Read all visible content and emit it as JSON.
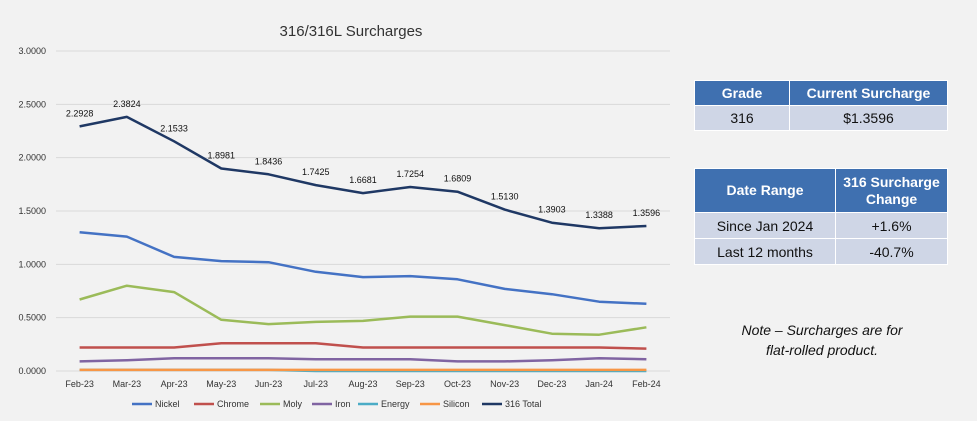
{
  "chart_data": {
    "type": "line",
    "title": "316/316L Surcharges",
    "categories": [
      "Feb-23",
      "Mar-23",
      "Apr-23",
      "May-23",
      "Jun-23",
      "Jul-23",
      "Aug-23",
      "Sep-23",
      "Oct-23",
      "Nov-23",
      "Dec-23",
      "Jan-24",
      "Feb-24"
    ],
    "ylim": [
      0,
      3.0
    ],
    "yticks": [
      "0.0000",
      "0.5000",
      "1.0000",
      "1.5000",
      "2.0000",
      "2.5000",
      "3.0000"
    ],
    "grid": true,
    "legend": "bottom",
    "series": [
      {
        "name": "Nickel",
        "color": "#4472c4",
        "values": [
          1.3,
          1.26,
          1.07,
          1.03,
          1.02,
          0.93,
          0.88,
          0.89,
          0.86,
          0.77,
          0.72,
          0.65,
          0.63
        ]
      },
      {
        "name": "Chrome",
        "color": "#c0504d",
        "values": [
          0.22,
          0.22,
          0.22,
          0.26,
          0.26,
          0.26,
          0.22,
          0.22,
          0.22,
          0.22,
          0.22,
          0.22,
          0.21
        ]
      },
      {
        "name": "Moly",
        "color": "#9bbb59",
        "values": [
          0.67,
          0.8,
          0.74,
          0.48,
          0.44,
          0.46,
          0.47,
          0.51,
          0.51,
          0.43,
          0.35,
          0.34,
          0.41
        ]
      },
      {
        "name": "Iron",
        "color": "#8064a2",
        "values": [
          0.09,
          0.1,
          0.12,
          0.12,
          0.12,
          0.11,
          0.11,
          0.11,
          0.09,
          0.09,
          0.1,
          0.12,
          0.11
        ]
      },
      {
        "name": "Energy",
        "color": "#4bacc6",
        "values": [
          0.01,
          0.01,
          0.01,
          0.01,
          0.01,
          0.0,
          0.0,
          0.0,
          0.0,
          0.0,
          0.0,
          0.0,
          0.0
        ]
      },
      {
        "name": "Silicon",
        "color": "#f79646",
        "values": [
          0.01,
          0.01,
          0.01,
          0.01,
          0.01,
          0.01,
          0.01,
          0.01,
          0.01,
          0.01,
          0.01,
          0.01,
          0.01
        ]
      },
      {
        "name": "316 Total",
        "color": "#1f3864",
        "values": [
          2.2928,
          2.3824,
          2.1533,
          1.8981,
          1.8436,
          1.7425,
          1.6681,
          1.7254,
          1.6809,
          1.513,
          1.3903,
          1.3388,
          1.3596
        ],
        "labels": [
          "2.2928",
          "2.3824",
          "2.1533",
          "1.8981",
          "1.8436",
          "1.7425",
          "1.6681",
          "1.7254",
          "1.6809",
          "1.5130",
          "1.3903",
          "1.3388",
          "1.3596"
        ]
      }
    ]
  },
  "grade_table": {
    "headers": [
      "Grade",
      "Current Surcharge"
    ],
    "row": [
      "316",
      "$1.3596"
    ]
  },
  "range_table": {
    "headers": [
      "Date Range",
      "316 Surcharge Change"
    ],
    "rows": [
      [
        "Since Jan 2024",
        "+1.6%"
      ],
      [
        "Last 12 months",
        "-40.7%"
      ]
    ]
  },
  "note": {
    "line1": "Note – Surcharges are for",
    "line2": "flat-rolled product."
  }
}
